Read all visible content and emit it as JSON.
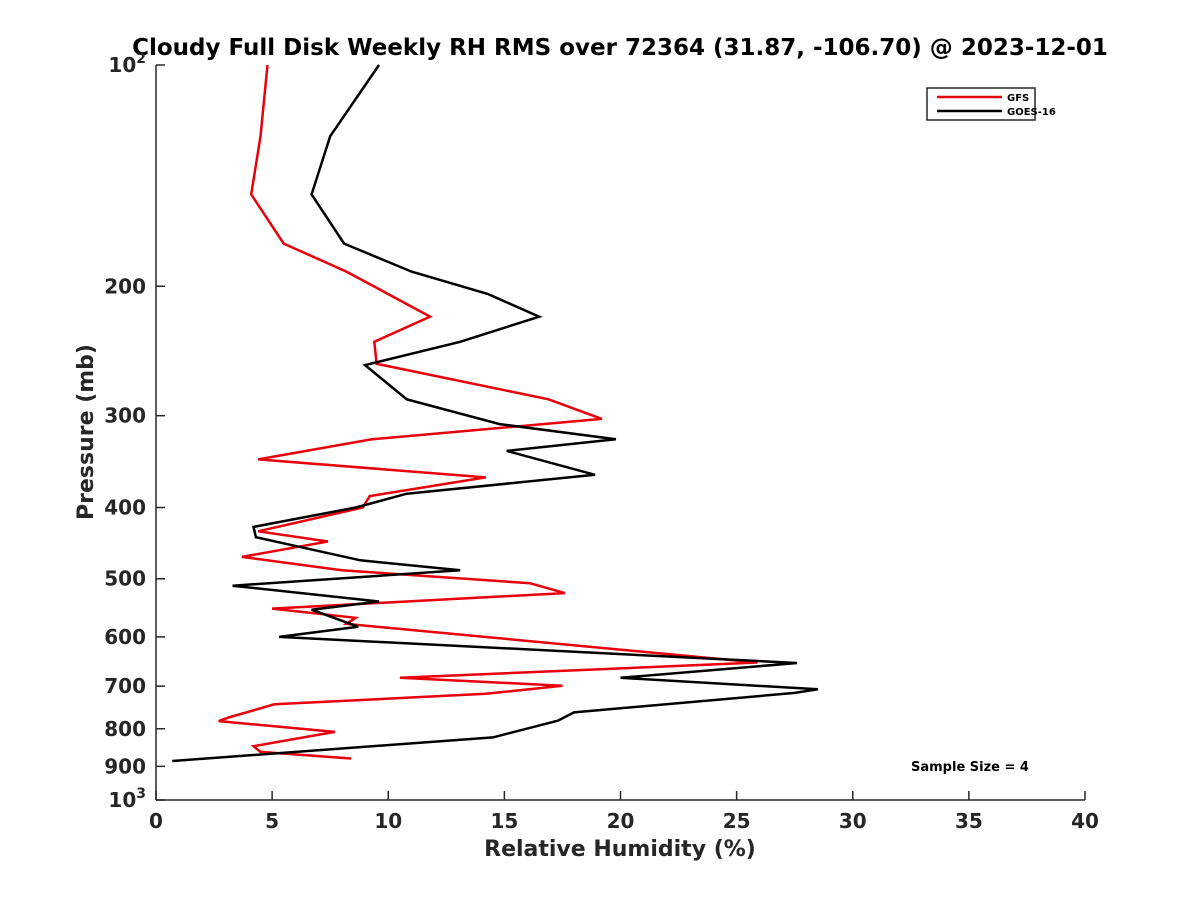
{
  "chart_data": {
    "type": "line",
    "title": "Cloudy Full Disk Weekly RH RMS over 72364 (31.87, -106.70) @ 2023-12-01",
    "xlabel": "Relative Humidity (%)",
    "ylabel": "Pressure (mb)",
    "xlim": [
      0,
      40
    ],
    "ylim": [
      100,
      1000
    ],
    "yscale": "log",
    "y_reversed": true,
    "grid": false,
    "legend_position": "top-right",
    "x_ticks": [
      "0",
      "5",
      "10",
      "15",
      "20",
      "25",
      "30",
      "35",
      "40"
    ],
    "x_tick_values": [
      0,
      5,
      10,
      15,
      20,
      25,
      30,
      35,
      40
    ],
    "y_ticks": [
      {
        "value": 100,
        "base": "10",
        "exp": "2"
      },
      {
        "value": 200,
        "label": "200"
      },
      {
        "value": 300,
        "label": "300"
      },
      {
        "value": 400,
        "label": "400"
      },
      {
        "value": 500,
        "label": "500"
      },
      {
        "value": 600,
        "label": "600"
      },
      {
        "value": 700,
        "label": "700"
      },
      {
        "value": 800,
        "label": "800"
      },
      {
        "value": 900,
        "label": "900"
      },
      {
        "value": 1000,
        "base": "10",
        "exp": "3"
      }
    ],
    "annotation": "Sample Size = 4",
    "series": [
      {
        "name": "GFS",
        "color": "#e8000b",
        "points": [
          [
            4.8,
            100
          ],
          [
            4.5,
            125
          ],
          [
            4.1,
            150
          ],
          [
            5.5,
            175
          ],
          [
            8.2,
            191
          ],
          [
            10.0,
            205
          ],
          [
            11.8,
            220
          ],
          [
            9.4,
            238
          ],
          [
            9.5,
            255
          ],
          [
            16.9,
            285
          ],
          [
            19.2,
            303
          ],
          [
            9.3,
            323
          ],
          [
            4.4,
            344
          ],
          [
            14.2,
            364
          ],
          [
            9.2,
            386
          ],
          [
            8.9,
            400
          ],
          [
            4.4,
            431
          ],
          [
            7.4,
            445
          ],
          [
            3.7,
            467
          ],
          [
            8.0,
            487
          ],
          [
            16.1,
            507
          ],
          [
            17.6,
            523
          ],
          [
            5.0,
            549
          ],
          [
            8.6,
            565
          ],
          [
            8.2,
            576
          ],
          [
            25.9,
            650
          ],
          [
            10.5,
            682
          ],
          [
            17.5,
            699
          ],
          [
            14.2,
            717
          ],
          [
            5.1,
            741
          ],
          [
            3.2,
            771
          ],
          [
            2.7,
            781
          ],
          [
            7.7,
            808
          ],
          [
            4.2,
            845
          ],
          [
            4.5,
            860
          ],
          [
            8.4,
            878
          ]
        ]
      },
      {
        "name": "GOES-16",
        "color": "#000000",
        "points": [
          [
            9.6,
            100
          ],
          [
            7.5,
            125
          ],
          [
            6.7,
            150
          ],
          [
            8.1,
            175
          ],
          [
            11.0,
            191
          ],
          [
            14.3,
            205
          ],
          [
            16.5,
            220
          ],
          [
            13.1,
            238
          ],
          [
            9.0,
            256
          ],
          [
            10.8,
            285
          ],
          [
            14.8,
            308
          ],
          [
            19.8,
            323
          ],
          [
            15.1,
            335
          ],
          [
            18.9,
            361
          ],
          [
            10.8,
            383
          ],
          [
            8.6,
            400
          ],
          [
            4.2,
            425
          ],
          [
            4.3,
            439
          ],
          [
            8.8,
            472
          ],
          [
            13.1,
            487
          ],
          [
            3.3,
            511
          ],
          [
            9.6,
            537
          ],
          [
            6.7,
            551
          ],
          [
            8.7,
            581
          ],
          [
            5.3,
            600
          ],
          [
            27.6,
            651
          ],
          [
            20.0,
            682
          ],
          [
            28.5,
            707
          ],
          [
            27.5,
            715
          ],
          [
            18.0,
            760
          ],
          [
            17.3,
            780
          ],
          [
            14.5,
            822
          ],
          [
            0.7,
            885
          ]
        ]
      }
    ]
  }
}
